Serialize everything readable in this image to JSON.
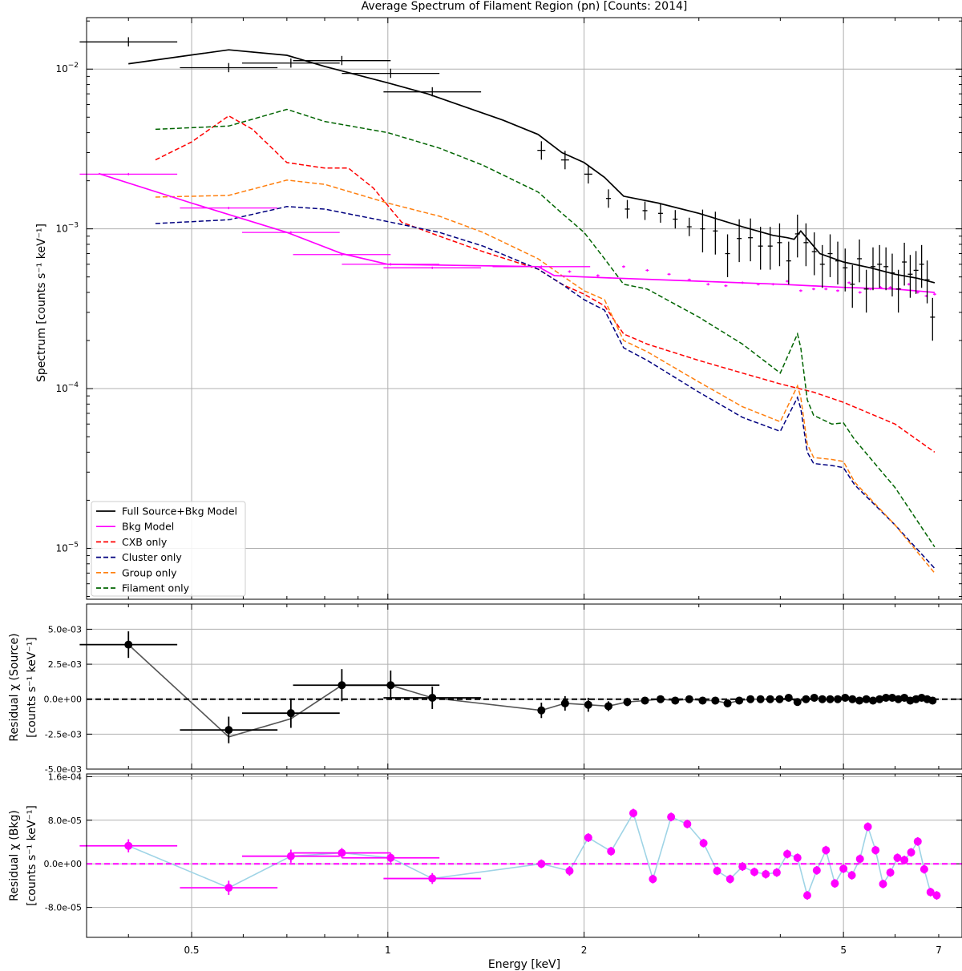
{
  "chart_data": [
    {
      "type": "line",
      "title": "Average Spectrum of Filament Region (pn) [Counts: 2014]",
      "xlabel": "Energy [keV]",
      "ylabel": "Spectrum [counts s⁻¹ keV⁻¹]",
      "xscale": "log",
      "yscale": "log",
      "xlim": [
        0.345,
        7.6
      ],
      "ylim": [
        4.8e-06,
        0.021
      ],
      "grid": true,
      "legend_position": "lower-left",
      "y_tick_labels": [
        {
          "value": 0.01,
          "base": "10",
          "exp": "−2"
        },
        {
          "value": 0.001,
          "base": "10",
          "exp": "−3"
        },
        {
          "value": 0.0001,
          "base": "10",
          "exp": "−4"
        },
        {
          "value": 1e-05,
          "base": "10",
          "exp": "−5"
        }
      ],
      "series": [
        {
          "name": "Full Source+Bkg Model",
          "color": "#000000",
          "dash": false,
          "x": [
            0.4,
            0.57,
            0.7,
            0.8,
            1.0,
            1.15,
            1.5,
            1.7,
            1.85,
            2.0,
            2.15,
            2.3,
            2.6,
            3.0,
            3.5,
            3.9,
            4.1,
            4.2,
            4.3,
            4.6,
            5.0,
            5.5,
            6.0,
            6.5,
            6.9
          ],
          "y": [
            0.0108,
            0.0132,
            0.0122,
            0.0104,
            0.0082,
            0.007,
            0.0048,
            0.0039,
            0.003,
            0.0026,
            0.0021,
            0.0016,
            0.00145,
            0.00125,
            0.00103,
            0.00091,
            0.00088,
            0.00086,
            0.00097,
            0.0007,
            0.00062,
            0.00057,
            0.00052,
            0.00049,
            0.00046
          ]
        },
        {
          "name": "Bkg Model",
          "color": "#ff00ff",
          "dash": false,
          "x": [
            0.36,
            0.5,
            0.7,
            0.85,
            1.0,
            1.3,
            1.7,
            1.8,
            2.0,
            3.0,
            4.0,
            5.0,
            6.0,
            6.9
          ],
          "y": [
            0.00222,
            0.00145,
            0.00095,
            0.0007,
            0.0006,
            0.00059,
            0.00058,
            0.00051,
            0.0005,
            0.00047,
            0.00045,
            0.00043,
            0.00042,
            0.0004
          ]
        },
        {
          "name": "CXB only",
          "color": "#ff0000",
          "dash": true,
          "x": [
            0.44,
            0.5,
            0.57,
            0.62,
            0.7,
            0.8,
            0.87,
            0.95,
            1.05,
            1.2,
            1.4,
            1.7,
            1.85,
            2.0,
            2.15,
            2.3,
            2.5,
            3.0,
            3.5,
            4.0,
            4.5,
            5.0,
            6.0,
            6.9
          ],
          "y": [
            0.0027,
            0.0035,
            0.0051,
            0.0042,
            0.0026,
            0.0024,
            0.0024,
            0.0018,
            0.0011,
            0.0009,
            0.00072,
            0.00056,
            0.00045,
            0.00039,
            0.00033,
            0.00022,
            0.00019,
            0.00015,
            0.000125,
            0.000107,
            9.5e-05,
            8.2e-05,
            6e-05,
            4e-05
          ]
        },
        {
          "name": "Cluster only",
          "color": "#00007f",
          "dash": true,
          "x": [
            0.44,
            0.57,
            0.7,
            0.8,
            1.0,
            1.2,
            1.4,
            1.7,
            1.85,
            2.0,
            2.15,
            2.3,
            2.5,
            3.0,
            3.5,
            4.0,
            4.25,
            4.3,
            4.4,
            4.5,
            4.8,
            5.0,
            5.2,
            6.0,
            6.9
          ],
          "y": [
            0.00108,
            0.00114,
            0.00138,
            0.00133,
            0.00111,
            0.00095,
            0.00078,
            0.00056,
            0.00045,
            0.00036,
            0.00031,
            0.00018,
            0.00015,
            9.5e-05,
            6.6e-05,
            5.4e-05,
            8.8e-05,
            7.5e-05,
            4e-05,
            3.4e-05,
            3.3e-05,
            3.2e-05,
            2.5e-05,
            1.4e-05,
            7.5e-06
          ]
        },
        {
          "name": "Group only",
          "color": "#ff7f0e",
          "dash": true,
          "x": [
            0.44,
            0.57,
            0.7,
            0.8,
            1.0,
            1.2,
            1.4,
            1.7,
            1.85,
            2.0,
            2.15,
            2.3,
            2.5,
            3.0,
            3.5,
            4.0,
            4.25,
            4.3,
            4.4,
            4.5,
            4.8,
            5.0,
            5.2,
            6.0,
            6.9
          ],
          "y": [
            0.00158,
            0.00162,
            0.00202,
            0.0019,
            0.00145,
            0.0012,
            0.00095,
            0.00065,
            0.00051,
            0.00041,
            0.00036,
            0.0002,
            0.00017,
            0.00011,
            7.7e-05,
            6.2e-05,
            0.000104,
            8.8e-05,
            4.5e-05,
            3.7e-05,
            3.6e-05,
            3.5e-05,
            2.6e-05,
            1.4e-05,
            7e-06
          ]
        },
        {
          "name": "Filament only",
          "color": "#006400",
          "dash": true,
          "x": [
            0.44,
            0.57,
            0.7,
            0.8,
            1.0,
            1.2,
            1.4,
            1.7,
            1.85,
            2.0,
            2.15,
            2.3,
            2.5,
            3.0,
            3.5,
            4.0,
            4.25,
            4.3,
            4.4,
            4.5,
            4.8,
            5.0,
            5.2,
            6.0,
            6.9
          ],
          "y": [
            0.0042,
            0.0044,
            0.0056,
            0.0047,
            0.004,
            0.0032,
            0.0025,
            0.0017,
            0.00125,
            0.00095,
            0.00065,
            0.00045,
            0.00042,
            0.00028,
            0.00019,
            0.000125,
            0.00022,
            0.00018,
            8.5e-05,
            6.8e-05,
            6e-05,
            6.1e-05,
            4.8e-05,
            2.4e-05,
            1.02e-05
          ]
        }
      ],
      "data_points": {
        "x": [
          0.4,
          0.57,
          0.71,
          0.85,
          1.01,
          1.17,
          1.72,
          1.87,
          2.03,
          2.18,
          2.33,
          2.48,
          2.62,
          2.76,
          2.9,
          3.04,
          3.18,
          3.32,
          3.46,
          3.6,
          3.73,
          3.86,
          3.99,
          4.12,
          4.25,
          4.38,
          4.51,
          4.64,
          4.77,
          4.9,
          5.03,
          5.16,
          5.29,
          5.42,
          5.55,
          5.68,
          5.81,
          5.94,
          6.07,
          6.2,
          6.33,
          6.46,
          6.59,
          6.72,
          6.85
        ],
        "y": [
          0.0148,
          0.0102,
          0.0109,
          0.0113,
          0.0094,
          0.0072,
          0.0031,
          0.0027,
          0.0022,
          0.00155,
          0.00133,
          0.0013,
          0.00125,
          0.00115,
          0.00103,
          0.001,
          0.00097,
          0.0007,
          0.00087,
          0.00088,
          0.00078,
          0.00078,
          0.00082,
          0.00063,
          0.00093,
          0.00082,
          0.00072,
          0.0006,
          0.0007,
          0.00063,
          0.00057,
          0.00045,
          0.00065,
          0.00042,
          0.00058,
          0.0006,
          0.00058,
          0.00053,
          0.00042,
          0.00062,
          0.00052,
          0.00055,
          0.0006,
          0.00048,
          0.00028
        ]
      },
      "bkg_points": {
        "x": [
          0.4,
          0.57,
          0.71,
          0.85,
          1.01,
          1.17,
          1.72,
          1.9,
          2.1,
          2.3,
          2.5,
          2.7,
          2.9,
          3.1,
          3.3,
          3.5,
          3.7,
          3.9,
          4.1,
          4.3,
          4.5,
          4.7,
          4.9,
          5.1,
          5.3,
          5.5,
          5.7,
          5.9,
          6.1,
          6.3,
          6.5,
          6.7,
          6.9
        ],
        "y": [
          0.0022,
          0.00135,
          0.00095,
          0.00069,
          0.0006,
          0.00057,
          0.00058,
          0.00054,
          0.00051,
          0.00058,
          0.00055,
          0.00052,
          0.00048,
          0.00045,
          0.00044,
          0.00046,
          0.00045,
          0.00045,
          0.00047,
          0.00041,
          0.00042,
          0.00042,
          0.00041,
          0.00046,
          0.0004,
          0.00042,
          0.00043,
          0.00043,
          0.00042,
          0.00045,
          0.0004,
          0.00038,
          0.00039
        ]
      }
    },
    {
      "type": "scatter",
      "title": "",
      "xlabel": "",
      "ylabel": "Residual χ (Source)",
      "ylabel2": "[counts s⁻¹ keV⁻¹]",
      "xscale": "log",
      "ylim": [
        -0.005,
        0.0068
      ],
      "y_tick_labels": [
        "5.0e-03",
        "2.5e-03",
        "0.0e+00",
        "-2.5e-03",
        "-5.0e-03"
      ],
      "y_tick_values": [
        0.005,
        0.0025,
        0,
        -0.0025,
        -0.005
      ],
      "color": "#000000",
      "line_color": "#555555",
      "x": [
        0.4,
        0.57,
        0.71,
        0.85,
        1.01,
        1.17,
        1.72,
        1.87,
        2.03,
        2.18,
        2.33,
        2.48,
        2.62,
        2.76,
        2.9,
        3.04,
        3.18,
        3.32,
        3.46,
        3.6,
        3.73,
        3.86,
        3.99,
        4.12,
        4.25,
        4.38,
        4.51,
        4.64,
        4.77,
        4.9,
        5.03,
        5.16,
        5.29,
        5.42,
        5.55,
        5.68,
        5.81,
        5.94,
        6.07,
        6.2,
        6.33,
        6.46,
        6.59,
        6.72,
        6.85
      ],
      "values": [
        0.0039,
        -0.0022,
        -0.001,
        0.001,
        0.001,
        0.0001,
        -0.0008,
        -0.0003,
        -0.0004,
        -0.0005,
        -0.0002,
        -0.0001,
        0.0,
        -0.0001,
        0.0,
        -0.0001,
        -0.0001,
        -0.0003,
        -0.0001,
        0.0,
        0.0,
        0.0,
        0.0,
        0.0001,
        -0.0002,
        0.0,
        0.0001,
        0.0,
        0.0,
        0.0,
        0.0001,
        0.0,
        -0.0001,
        0.0,
        -0.0001,
        0.0,
        0.0001,
        0.0001,
        0.0,
        0.0001,
        -0.0001,
        0.0,
        0.0001,
        0.0,
        -0.0001
      ],
      "errors": [
        0.00095,
        0.00095,
        0.00105,
        0.00115,
        0.00105,
        0.0008,
        0.00055,
        0.00052,
        0.0005,
        0.00035,
        0.0003,
        0.0002,
        0.00015,
        0.0002,
        0.0002,
        0.0002,
        0.0002,
        0.0002,
        0.0002,
        0.0002,
        0.0002,
        0.0002,
        0.0002,
        0.0002,
        0.0002,
        0.0002,
        0.0002,
        0.0002,
        0.0002,
        0.0002,
        0.0002,
        0.0002,
        0.0002,
        0.0002,
        0.0002,
        0.0002,
        0.0002,
        0.0002,
        0.0002,
        0.0002,
        0.0002,
        0.0002,
        0.0002,
        0.0002,
        0.0002
      ],
      "xerr_bins": [
        0.05,
        0.05,
        0.05,
        0.05,
        0.05,
        0.05
      ],
      "model_x": [
        0.4,
        0.57,
        0.71,
        0.85,
        1.01,
        1.17,
        1.72,
        1.87,
        2.03,
        2.18,
        2.33
      ],
      "model_y": [
        0.0039,
        -0.0027,
        -0.0014,
        0.001,
        0.001,
        0.0001,
        -0.0008,
        -0.0003,
        -0.0004,
        -0.0005,
        -0.0002
      ],
      "reference_line": 0
    },
    {
      "type": "scatter",
      "title": "",
      "xlabel": "Energy [keV]",
      "ylabel": "Residual χ (Bkg)",
      "ylabel2": "[counts s⁻¹ keV⁻¹]",
      "xscale": "log",
      "ylim": [
        -0.000135,
        0.000165
      ],
      "y_tick_labels": [
        "1.6e-04",
        "8.0e-05",
        "0.0e+00",
        "-8.0e-05"
      ],
      "y_tick_values": [
        0.00016,
        8e-05,
        0,
        -8e-05
      ],
      "color": "#ff00ff",
      "line_color": "#9fd4e6",
      "x": [
        0.4,
        0.57,
        0.71,
        0.85,
        1.01,
        1.17,
        1.72,
        1.9,
        2.03,
        2.2,
        2.38,
        2.55,
        2.72,
        2.88,
        3.05,
        3.2,
        3.35,
        3.5,
        3.65,
        3.8,
        3.95,
        4.1,
        4.25,
        4.4,
        4.55,
        4.7,
        4.85,
        5.0,
        5.15,
        5.3,
        5.45,
        5.6,
        5.75,
        5.9,
        6.05,
        6.2,
        6.35,
        6.5,
        6.65,
        6.8,
        6.95
      ],
      "values": [
        3.3e-05,
        -4.4e-05,
        1.4e-05,
        2e-05,
        1.1e-05,
        -2.7e-05,
        0.0,
        -1.3e-05,
        4.8e-05,
        2.3e-05,
        9.3e-05,
        -2.8e-05,
        8.6e-05,
        7.3e-05,
        3.8e-05,
        -1.3e-05,
        -2.8e-05,
        -5e-06,
        -1.5e-05,
        -1.9e-05,
        -1.6e-05,
        1.8e-05,
        1.1e-05,
        -5.8e-05,
        -1.2e-05,
        2.5e-05,
        -3.6e-05,
        -9e-06,
        -2.1e-05,
        9e-06,
        6.8e-05,
        2.5e-05,
        -3.7e-05,
        -1.6e-05,
        1.1e-05,
        7e-06,
        2.1e-05,
        4.1e-05,
        -1e-05,
        -5.2e-05,
        -5.8e-05
      ],
      "errors": [
        1.2e-05,
        1.3e-05,
        1.2e-05,
        9e-06,
        9e-06,
        1e-05,
        8e-06,
        9e-06,
        8e-06,
        8e-06,
        8e-06,
        8e-06,
        8e-06,
        8e-06,
        8e-06,
        8e-06,
        8e-06,
        8e-06,
        8e-06,
        8e-06,
        8e-06,
        8e-06,
        8e-06,
        8e-06,
        8e-06,
        8e-06,
        8e-06,
        8e-06,
        8e-06,
        8e-06,
        8e-06,
        8e-06,
        8e-06,
        8e-06,
        8e-06,
        8e-06,
        8e-06,
        8e-06,
        8e-06,
        8e-06,
        8e-06
      ],
      "reference_line": 0,
      "x_tick_labels": [
        "0.5",
        "1",
        "2",
        "5",
        "7"
      ],
      "x_tick_values": [
        0.5,
        1,
        2,
        5,
        7
      ]
    }
  ]
}
